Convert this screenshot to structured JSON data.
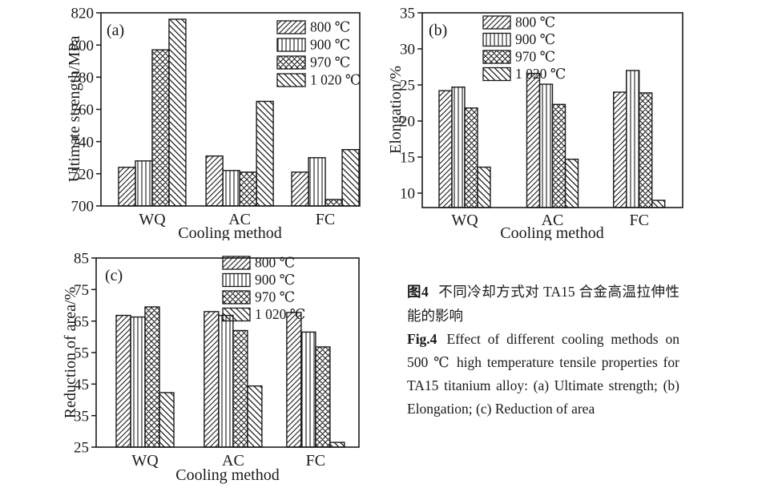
{
  "figure": {
    "background": "#ffffff",
    "ink_color": "#1a1a1a"
  },
  "chart_data": [
    {
      "id": "a",
      "type": "bar",
      "panel_label": "(a)",
      "xlabel": "Cooling method",
      "ylabel": "Ultimate strength/MPa",
      "ylim": [
        700,
        820
      ],
      "yticks": [
        700,
        720,
        740,
        760,
        780,
        800,
        820
      ],
      "categories": [
        "WQ",
        "AC",
        "FC"
      ],
      "grid": false,
      "legend_position": "top-right",
      "series": [
        {
          "name": "800 ℃",
          "pattern": "diag-up",
          "values": [
            724,
            731,
            721
          ]
        },
        {
          "name": "900 ℃",
          "pattern": "vertical",
          "values": [
            728,
            722,
            730
          ]
        },
        {
          "name": "970 ℃",
          "pattern": "crosshatch",
          "values": [
            797,
            721,
            704
          ]
        },
        {
          "name": "1 020 ℃",
          "pattern": "diag-down",
          "values": [
            816,
            765,
            735
          ]
        }
      ]
    },
    {
      "id": "b",
      "type": "bar",
      "panel_label": "(b)",
      "xlabel": "Cooling method",
      "ylabel": "Elongation/%",
      "ylim": [
        8,
        35
      ],
      "yticks": [
        10,
        15,
        20,
        25,
        30,
        35
      ],
      "categories": [
        "WQ",
        "AC",
        "FC"
      ],
      "grid": false,
      "legend_position": "top-center",
      "series": [
        {
          "name": "800 ℃",
          "pattern": "diag-up",
          "values": [
            24.2,
            26.6,
            24.0
          ]
        },
        {
          "name": "900 ℃",
          "pattern": "vertical",
          "values": [
            24.7,
            25.1,
            27.0
          ]
        },
        {
          "name": "970 ℃",
          "pattern": "crosshatch",
          "values": [
            21.8,
            22.3,
            23.9
          ]
        },
        {
          "name": "1 020 ℃",
          "pattern": "diag-down",
          "values": [
            13.6,
            14.7,
            9.0
          ]
        }
      ]
    },
    {
      "id": "c",
      "type": "bar",
      "panel_label": "(c)",
      "xlabel": "Cooling method",
      "ylabel": "Reduction of area/%",
      "ylim": [
        25,
        85
      ],
      "yticks": [
        25,
        35,
        45,
        55,
        65,
        75,
        85
      ],
      "categories": [
        "WQ",
        "AC",
        "FC"
      ],
      "grid": false,
      "legend_position": "top-center",
      "series": [
        {
          "name": "800 ℃",
          "pattern": "diag-up",
          "values": [
            66.8,
            68.0,
            67.7
          ]
        },
        {
          "name": "900 ℃",
          "pattern": "vertical",
          "values": [
            66.3,
            66.8,
            61.5
          ]
        },
        {
          "name": "970 ℃",
          "pattern": "crosshatch",
          "values": [
            69.5,
            62.0,
            56.8
          ]
        },
        {
          "name": "1 020 ℃",
          "pattern": "diag-down",
          "values": [
            42.3,
            44.4,
            26.5
          ]
        }
      ]
    }
  ],
  "caption": {
    "zh_label": "图4",
    "zh_text": "不同冷却方式对 TA15 合金高温拉伸性能的影响",
    "en_label": "Fig.4",
    "en_text": "Effect of different cooling methods on 500 ℃ high temperature tensile properties for TA15 titanium alloy: (a) Ultimate strength; (b) Elongation; (c) Reduction of area"
  }
}
